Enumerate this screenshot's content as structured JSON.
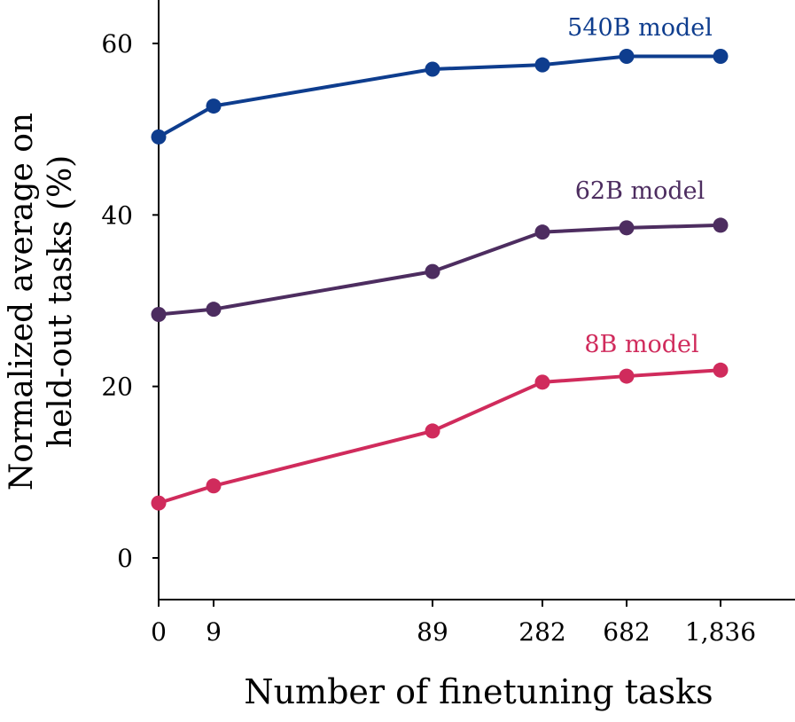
{
  "chart_data": {
    "type": "line",
    "title": "",
    "xlabel": "Number of finetuning tasks",
    "ylabel": [
      "Normalized average on",
      "held-out tasks (%)"
    ],
    "x": [
      0,
      9,
      89,
      282,
      682,
      1836
    ],
    "x_tick_labels": [
      "0",
      "9",
      "89",
      "282",
      "682",
      "1,836"
    ],
    "y_ticks": [
      0,
      20,
      40,
      60
    ],
    "y_tick_labels": [
      "0",
      "20",
      "40",
      "60"
    ],
    "ylim": [
      -5,
      65
    ],
    "grid": false,
    "series": [
      {
        "name": "540B model",
        "color": "#0e3d8e",
        "values": [
          49.1,
          52.7,
          57.0,
          57.5,
          58.5,
          58.5
        ]
      },
      {
        "name": "62B model",
        "color": "#4d2d60",
        "values": [
          28.4,
          29.0,
          33.4,
          38.0,
          38.5,
          38.8
        ]
      },
      {
        "name": "8B model",
        "color": "#d02b5c",
        "values": [
          6.4,
          8.4,
          14.8,
          20.5,
          21.2,
          21.9
        ]
      }
    ]
  }
}
